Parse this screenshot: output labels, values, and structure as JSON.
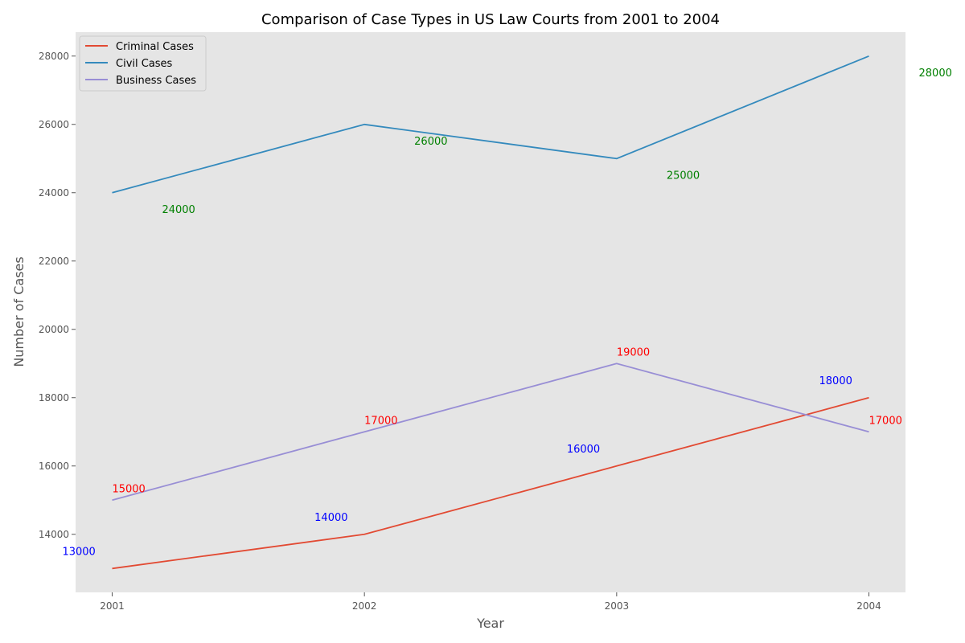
{
  "chart_data": {
    "type": "line",
    "title": "Comparison of Case Types in US Law Courts from 2001 to 2004",
    "xlabel": "Year",
    "ylabel": "Number of Cases",
    "categories": [
      "2001",
      "2002",
      "2003",
      "2004"
    ],
    "x": [
      2001,
      2002,
      2003,
      2004
    ],
    "xlim": [
      2000.855,
      2004.145
    ],
    "ylim": [
      12300,
      28700
    ],
    "yticks": [
      14000,
      16000,
      18000,
      20000,
      22000,
      24000,
      26000,
      28000
    ],
    "grid": false,
    "legend_position": "upper-left",
    "series": [
      {
        "name": "Criminal Cases",
        "color": "#E24A33",
        "values": [
          13000,
          14000,
          16000,
          18000
        ]
      },
      {
        "name": "Civil Cases",
        "color": "#348ABD",
        "values": [
          24000,
          26000,
          25000,
          28000
        ]
      },
      {
        "name": "Business Cases",
        "color": "#988ED5",
        "values": [
          15000,
          17000,
          19000,
          17000
        ]
      }
    ],
    "annotations": [
      {
        "text": "15000",
        "x": 2001,
        "y": 15000,
        "color": "#ff0000"
      },
      {
        "text": "17000",
        "x": 2002,
        "y": 17000,
        "color": "#ff0000"
      },
      {
        "text": "19000",
        "x": 2003,
        "y": 19000,
        "color": "#ff0000"
      },
      {
        "text": "17000",
        "x": 2004,
        "y": 17000,
        "color": "#ff0000"
      },
      {
        "text": "24000",
        "x": 2001,
        "y": 24000,
        "color": "#008000"
      },
      {
        "text": "26000",
        "x": 2002,
        "y": 26000,
        "color": "#008000"
      },
      {
        "text": "25000",
        "x": 2003,
        "y": 25000,
        "color": "#008000"
      },
      {
        "text": "28000",
        "x": 2004,
        "y": 28000,
        "color": "#008000"
      },
      {
        "text": "13000",
        "x": 2001,
        "y": 13000,
        "color": "#0000ff"
      },
      {
        "text": "14000",
        "x": 2002,
        "y": 14000,
        "color": "#0000ff"
      },
      {
        "text": "16000",
        "x": 2003,
        "y": 16000,
        "color": "#0000ff"
      },
      {
        "text": "18000",
        "x": 2004,
        "y": 18000,
        "color": "#0000ff"
      }
    ],
    "plot_background": "#E5E5E5"
  }
}
